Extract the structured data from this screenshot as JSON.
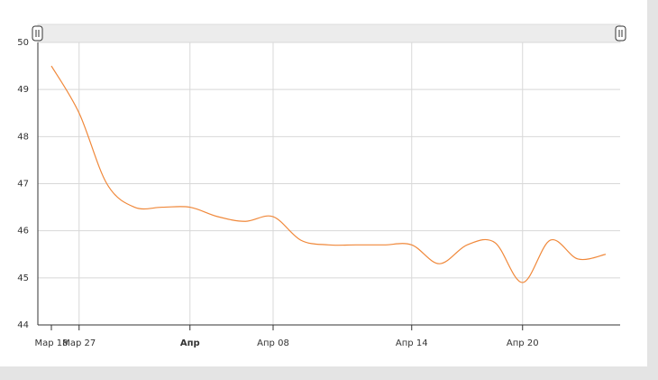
{
  "chart_data": {
    "type": "line",
    "categories": [
      "Мар 18",
      "Мар 27",
      null,
      null,
      null,
      "Апр",
      null,
      null,
      "Апр 08",
      null,
      null,
      null,
      null,
      "Апр 14",
      null,
      null,
      null,
      "Апр 20",
      null,
      null,
      null
    ],
    "series": [
      {
        "color": "#f0883a",
        "values": [
          49.5,
          48.5,
          47.0,
          46.5,
          46.5,
          46.5,
          46.3,
          46.2,
          46.3,
          45.8,
          45.7,
          45.7,
          45.7,
          45.7,
          45.3,
          45.7,
          45.75,
          44.9,
          45.8,
          45.4,
          45.5
        ]
      }
    ],
    "ylim": [
      44,
      50
    ],
    "yticks": [
      44,
      45,
      46,
      47,
      48,
      49,
      50
    ],
    "grid": true
  }
}
